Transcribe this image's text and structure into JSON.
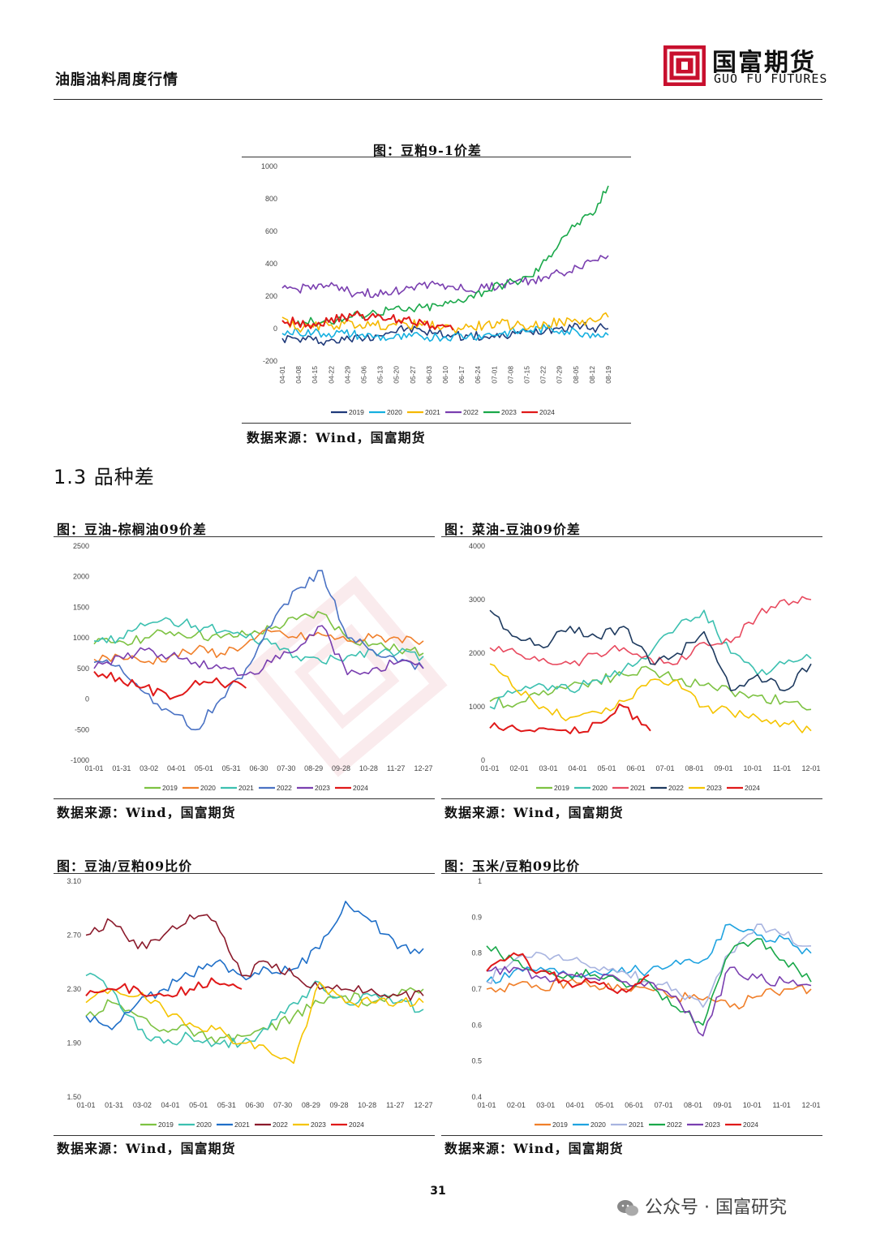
{
  "header": {
    "report_title": "油脂油料周度行情",
    "logo_cn": "国富期货",
    "logo_en": "GUO FU FUTURES",
    "logo_red": "#c8102e"
  },
  "section_heading": "1.3 品种差",
  "page_number": "31",
  "wechat": "公众号 · 国富研究",
  "charts": [
    {
      "title": "图：豆粕9-1价差",
      "source": "数据来源：Wind，国富期货"
    },
    {
      "title": "图：豆油-棕榈油09价差",
      "source": "数据来源：Wind，国富期货"
    },
    {
      "title": "图：菜油-豆油09价差",
      "source": "数据来源：Wind，国富期货"
    },
    {
      "title": "图：豆油/豆粕09比价",
      "source": "数据来源：Wind，国富期货"
    },
    {
      "title": "图：玉米/豆粕09比价",
      "source": "数据来源：Wind，国富期货"
    }
  ],
  "chart_data": [
    {
      "type": "line",
      "title": "图：豆粕9-1价差",
      "ylim": [
        -200,
        1000
      ],
      "yticks": [
        1000,
        800,
        600,
        400,
        200,
        0,
        -200
      ],
      "xtick_labels": [
        "04-01",
        "04-08",
        "04-15",
        "04-22",
        "04-29",
        "05-06",
        "05-13",
        "05-20",
        "05-27",
        "06-03",
        "06-10",
        "06-17",
        "06-24",
        "07-01",
        "07-08",
        "07-15",
        "07-22",
        "07-29",
        "08-05",
        "08-12",
        "08-19"
      ],
      "xtick_rotated": true,
      "legend_position": "bottom",
      "series": [
        {
          "name": "2019",
          "color": "#1f3a7a",
          "values": [
            -60,
            -65,
            -70,
            -75,
            -70,
            -55,
            -40,
            -20,
            0,
            -15,
            -30,
            -40,
            -45,
            -50,
            -55,
            -30,
            -20,
            -5,
            10,
            25,
            5,
            0
          ]
        },
        {
          "name": "2020",
          "color": "#16b0e0",
          "values": [
            -30,
            -20,
            -25,
            -30,
            -30,
            -40,
            -50,
            -60,
            -55,
            -50,
            -50,
            -45,
            -45,
            -40,
            -30,
            -20,
            -10,
            0,
            -10,
            -20,
            -30,
            -40
          ]
        },
        {
          "name": "2021",
          "color": "#f5b800",
          "values": [
            70,
            0,
            10,
            20,
            30,
            25,
            20,
            25,
            30,
            20,
            15,
            0,
            10,
            20,
            30,
            20,
            15,
            30,
            40,
            45,
            50,
            70
          ]
        },
        {
          "name": "2022",
          "color": "#7a3fb0",
          "values": [
            250,
            240,
            270,
            260,
            230,
            220,
            215,
            210,
            260,
            270,
            280,
            260,
            230,
            250,
            270,
            290,
            300,
            320,
            340,
            380,
            420,
            450
          ]
        },
        {
          "name": "2023",
          "color": "#1aa84a",
          "values": [
            null,
            50,
            40,
            50,
            60,
            90,
            100,
            120,
            110,
            130,
            140,
            160,
            200,
            230,
            270,
            290,
            320,
            420,
            560,
            650,
            700,
            880
          ]
        },
        {
          "name": "2024",
          "color": "#e01919",
          "values": [
            50,
            40,
            30,
            40,
            70,
            80,
            70,
            60,
            60,
            40,
            20,
            -10,
            null,
            null,
            null,
            null,
            null,
            null,
            null,
            null,
            null,
            null
          ]
        }
      ]
    },
    {
      "type": "line",
      "title": "图：豆油-棕榈油09价差",
      "ylim": [
        -1000,
        2500
      ],
      "yticks": [
        2500,
        2000,
        1500,
        1000,
        500,
        0,
        -500,
        -1000
      ],
      "xtick_labels": [
        "01-01",
        "01-31",
        "03-02",
        "04-01",
        "05-01",
        "05-31",
        "06-30",
        "07-30",
        "08-29",
        "09-28",
        "10-28",
        "11-27",
        "12-27"
      ],
      "legend_position": "bottom",
      "series": [
        {
          "name": "2019",
          "color": "#7dc242",
          "values": [
            900,
            950,
            1000,
            1100,
            1050,
            1000,
            1050,
            1150,
            1300,
            1400,
            1000,
            900,
            800,
            750
          ]
        },
        {
          "name": "2020",
          "color": "#f07f2a",
          "values": [
            650,
            700,
            600,
            700,
            800,
            750,
            900,
            1100,
            1000,
            1050,
            950,
            1000,
            1000,
            950
          ]
        },
        {
          "name": "2021",
          "color": "#3cc0b0",
          "values": [
            950,
            1000,
            1200,
            1300,
            1200,
            1100,
            1000,
            900,
            700,
            600,
            700,
            800,
            750,
            700
          ]
        },
        {
          "name": "2022",
          "color": "#4a72c4",
          "values": [
            600,
            550,
            100,
            -200,
            -500,
            0,
            500,
            1200,
            1800,
            2100,
            1000,
            800,
            600,
            500
          ]
        },
        {
          "name": "2023",
          "color": "#7a3fb0",
          "values": [
            500,
            700,
            800,
            700,
            600,
            500,
            400,
            600,
            800,
            1200,
            400,
            500,
            600,
            500
          ]
        },
        {
          "name": "2024",
          "color": "#e01919",
          "values": [
            450,
            350,
            200,
            0,
            300,
            250,
            180,
            null,
            null,
            null,
            null,
            null,
            null,
            null
          ]
        }
      ]
    },
    {
      "type": "line",
      "title": "图：菜油-豆油09价差",
      "ylim": [
        0,
        4000
      ],
      "yticks": [
        4000,
        3000,
        2000,
        1000,
        0
      ],
      "xtick_labels": [
        "01-01",
        "02-01",
        "03-01",
        "04-01",
        "05-01",
        "06-01",
        "07-01",
        "08-01",
        "09-01",
        "10-01",
        "11-01",
        "12-01"
      ],
      "legend_position": "bottom",
      "series": [
        {
          "name": "2019",
          "color": "#7dc242",
          "values": [
            1100,
            1050,
            1300,
            1400,
            1500,
            1600,
            1700,
            1500,
            1400,
            1300,
            1200,
            1100,
            950
          ]
        },
        {
          "name": "2020",
          "color": "#3cc0b0",
          "values": [
            1000,
            1300,
            1400,
            1300,
            1500,
            1700,
            2000,
            2500,
            2800,
            2000,
            1600,
            1800,
            1900
          ]
        },
        {
          "name": "2021",
          "color": "#e84a5f",
          "values": [
            2100,
            2000,
            1900,
            1800,
            2000,
            2100,
            1900,
            1800,
            2200,
            2200,
            2700,
            3000,
            3000
          ]
        },
        {
          "name": "2022",
          "color": "#1e3a5f",
          "values": [
            2800,
            2300,
            2100,
            2500,
            2300,
            2500,
            1800,
            2000,
            2400,
            1300,
            1600,
            1300,
            1800
          ]
        },
        {
          "name": "2023",
          "color": "#f5c400",
          "values": [
            1800,
            1300,
            1000,
            800,
            900,
            1100,
            1500,
            1500,
            1000,
            900,
            800,
            700,
            550
          ]
        },
        {
          "name": "2024",
          "color": "#e01919",
          "values": [
            600,
            580,
            600,
            500,
            700,
            1000,
            550,
            null,
            null,
            null,
            null,
            null,
            null
          ]
        }
      ]
    },
    {
      "type": "line",
      "title": "图：豆油/豆粕09比价",
      "ylim": [
        1.5,
        3.1
      ],
      "yticks": [
        3.1,
        2.7,
        2.3,
        1.9,
        1.5
      ],
      "ytick_labels": [
        "3.10",
        "2.70",
        "2.30",
        "1.90",
        "1.50"
      ],
      "xtick_labels": [
        "01-01",
        "01-31",
        "03-02",
        "04-01",
        "05-01",
        "05-31",
        "06-30",
        "07-30",
        "08-29",
        "09-28",
        "10-28",
        "11-27",
        "12-27"
      ],
      "legend_position": "bottom",
      "series": [
        {
          "name": "2019",
          "color": "#7dc242",
          "values": [
            2.1,
            2.2,
            2.1,
            2.0,
            2.0,
            1.9,
            1.95,
            2.0,
            2.1,
            2.2,
            2.25,
            2.2,
            2.25,
            2.3
          ]
        },
        {
          "name": "2020",
          "color": "#3cc0b0",
          "values": [
            2.4,
            2.3,
            2.0,
            1.9,
            1.95,
            1.9,
            1.9,
            2.0,
            2.2,
            2.35,
            2.2,
            2.25,
            2.2,
            2.15
          ]
        },
        {
          "name": "2021",
          "color": "#1f6fc8",
          "values": [
            2.1,
            2.0,
            2.2,
            2.3,
            2.4,
            2.5,
            2.4,
            2.45,
            2.45,
            2.6,
            2.95,
            2.8,
            2.6,
            2.6
          ]
        },
        {
          "name": "2022",
          "color": "#8b1a2b",
          "values": [
            2.7,
            2.8,
            2.6,
            2.7,
            2.85,
            2.8,
            2.4,
            2.5,
            2.4,
            2.3,
            2.3,
            2.3,
            2.25,
            2.25
          ]
        },
        {
          "name": "2023",
          "color": "#f5c400",
          "values": [
            2.2,
            2.3,
            2.25,
            2.15,
            2.05,
            2.0,
            1.9,
            1.85,
            1.75,
            2.35,
            2.2,
            2.2,
            2.2,
            2.2
          ]
        },
        {
          "name": "2024",
          "color": "#e01919",
          "values": [
            2.25,
            2.3,
            2.3,
            2.25,
            2.3,
            2.35,
            2.3,
            null,
            null,
            null,
            null,
            null,
            null,
            null
          ]
        }
      ]
    },
    {
      "type": "line",
      "title": "图：玉米/豆粕09比价",
      "ylim": [
        0.4,
        1.0
      ],
      "yticks": [
        1,
        0.9,
        0.8,
        0.7,
        0.6,
        0.5,
        0.4
      ],
      "ytick_labels": [
        "1",
        "0.9",
        "0.8",
        "0.7",
        "0.6",
        "0.5",
        "0.4"
      ],
      "xtick_labels": [
        "01-01",
        "02-01",
        "03-01",
        "04-01",
        "05-01",
        "06-01",
        "07-01",
        "08-01",
        "09-01",
        "10-01",
        "11-01",
        "12-01"
      ],
      "legend_position": "bottom",
      "series": [
        {
          "name": "2019",
          "color": "#f07f2a",
          "values": [
            0.7,
            0.71,
            0.7,
            0.72,
            0.71,
            0.7,
            0.7,
            0.68,
            0.67,
            0.65,
            0.68,
            0.7,
            0.7
          ]
        },
        {
          "name": "2020",
          "color": "#1fa3e0",
          "values": [
            0.72,
            0.75,
            0.76,
            0.74,
            0.75,
            0.76,
            0.75,
            0.78,
            0.78,
            0.88,
            0.85,
            0.84,
            0.8
          ]
        },
        {
          "name": "2021",
          "color": "#a8b4e0",
          "values": [
            0.72,
            0.78,
            0.8,
            0.78,
            0.76,
            0.75,
            0.72,
            0.7,
            0.65,
            0.8,
            0.88,
            0.85,
            0.82
          ]
        },
        {
          "name": "2022",
          "color": "#1aa84a",
          "values": [
            0.82,
            0.78,
            0.75,
            0.74,
            0.74,
            0.72,
            0.72,
            0.65,
            0.6,
            0.8,
            0.84,
            0.78,
            0.72
          ]
        },
        {
          "name": "2023",
          "color": "#7a3fb0",
          "values": [
            0.75,
            0.76,
            0.73,
            0.74,
            0.73,
            0.72,
            0.72,
            0.68,
            0.57,
            0.76,
            0.73,
            0.72,
            0.71
          ]
        },
        {
          "name": "2024",
          "color": "#e01919",
          "values": [
            0.75,
            0.8,
            0.75,
            0.72,
            0.72,
            0.7,
            0.74,
            null,
            null,
            null,
            null,
            null,
            null
          ]
        }
      ]
    }
  ]
}
